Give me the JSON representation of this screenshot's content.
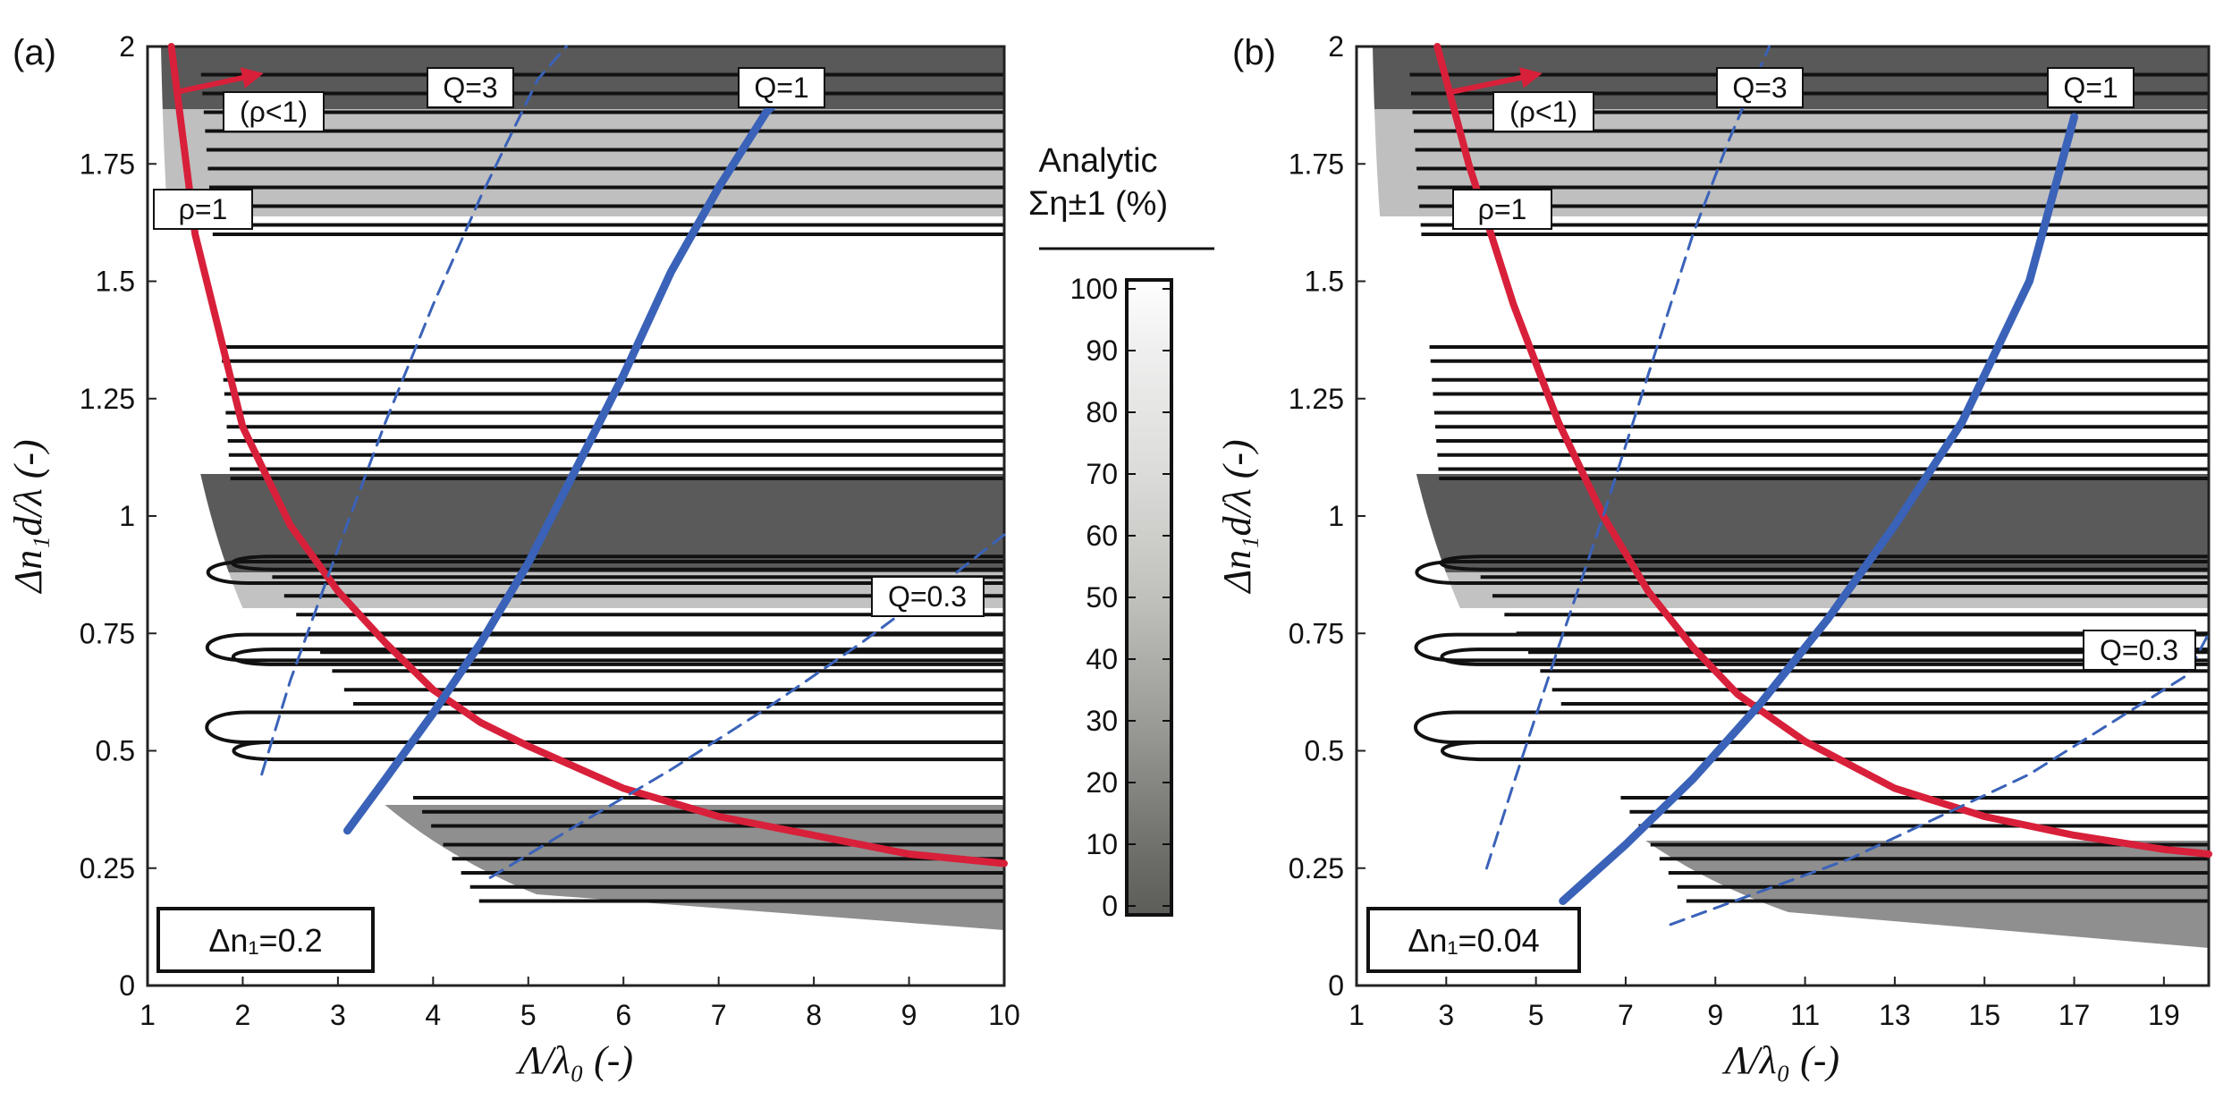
{
  "colors": {
    "rho_curve": "#d8203a",
    "q_curve": "#3a62b8",
    "contour": "#111111",
    "low": "#5a5a5a"
  },
  "colorbar": {
    "title_line1": "Analytic",
    "title_line2": "Ση±1 (%)",
    "ticks": [
      "100",
      "90",
      "80",
      "70",
      "60",
      "50",
      "40",
      "30",
      "20",
      "10",
      "0"
    ]
  },
  "chart_data": [
    {
      "type": "contour",
      "panel_label": "(a)",
      "xlabel": "Λ/λ₀  (-)",
      "ylabel": "Δn₁d/λ  (-)",
      "xlim": [
        1,
        10
      ],
      "ylim": [
        0,
        2
      ],
      "xticks": [
        "1",
        "2",
        "3",
        "4",
        "5",
        "6",
        "7",
        "8",
        "9",
        "10"
      ],
      "yticks": [
        "0",
        "0.25",
        "0.5",
        "0.75",
        "1",
        "1.25",
        "1.5",
        "1.75",
        "2"
      ],
      "legend": "Δn₁=0.2",
      "annotations": [
        "(ρ<1)",
        "ρ=1",
        "Q=3",
        "Q=1",
        "Q=0.3"
      ],
      "series": [
        {
          "name": "ρ=1",
          "style": "solid-red",
          "x": [
            1.25,
            1.5,
            2,
            2.5,
            3,
            3.5,
            4,
            4.5,
            5,
            6,
            7,
            8,
            9,
            10
          ],
          "y": [
            2.0,
            1.6,
            1.19,
            0.98,
            0.84,
            0.73,
            0.63,
            0.56,
            0.51,
            0.42,
            0.36,
            0.32,
            0.28,
            0.26
          ]
        },
        {
          "name": "Q=1",
          "style": "solid-blue",
          "x": [
            3.1,
            3.5,
            4,
            4.5,
            5,
            5.5,
            6,
            6.5,
            7,
            7.5,
            7.6
          ],
          "y": [
            0.33,
            0.44,
            0.58,
            0.73,
            0.9,
            1.1,
            1.3,
            1.52,
            1.7,
            1.86,
            1.88
          ]
        },
        {
          "name": "Q=3",
          "style": "dashed-blue",
          "x": [
            2.2,
            2.5,
            3,
            3.5,
            4,
            4.5,
            5.1,
            5.4
          ],
          "y": [
            0.45,
            0.65,
            0.93,
            1.2,
            1.45,
            1.68,
            1.93,
            2.0
          ]
        },
        {
          "name": "Q=0.3",
          "style": "dashed-blue",
          "x": [
            4.6,
            5.5,
            6.5,
            7.5,
            8.5,
            9.5,
            10
          ],
          "y": [
            0.23,
            0.34,
            0.46,
            0.59,
            0.73,
            0.88,
            0.96
          ]
        }
      ]
    },
    {
      "type": "contour",
      "panel_label": "(b)",
      "xlabel": "Λ/λ₀  (-)",
      "ylabel": "Δn₁d/λ  (-)",
      "xlim": [
        1,
        20
      ],
      "ylim": [
        0,
        2
      ],
      "xticks": [
        "1",
        "3",
        "5",
        "7",
        "9",
        "11",
        "13",
        "15",
        "17",
        "19"
      ],
      "yticks": [
        "0",
        "0.25",
        "0.5",
        "0.75",
        "1",
        "1.25",
        "1.5",
        "1.75",
        "2"
      ],
      "legend": "Δn₁=0.04",
      "annotations": [
        "(ρ<1)",
        "ρ=1",
        "Q=3",
        "Q=1",
        "Q=0.3"
      ],
      "series": [
        {
          "name": "ρ=1",
          "style": "solid-red",
          "x": [
            2.8,
            3.5,
            4.5,
            5.5,
            6.5,
            7.5,
            8.5,
            9.5,
            11,
            13,
            15,
            17,
            19,
            20
          ],
          "y": [
            2.0,
            1.75,
            1.45,
            1.2,
            1.0,
            0.84,
            0.72,
            0.62,
            0.52,
            0.42,
            0.36,
            0.32,
            0.29,
            0.28
          ]
        },
        {
          "name": "Q=1",
          "style": "solid-blue",
          "x": [
            5.6,
            7,
            8.5,
            10,
            11.5,
            13,
            14.5,
            16,
            17
          ],
          "y": [
            0.18,
            0.3,
            0.44,
            0.6,
            0.78,
            0.98,
            1.2,
            1.5,
            1.85
          ]
        },
        {
          "name": "Q=3",
          "style": "dashed-blue",
          "x": [
            3.9,
            4.5,
            5.5,
            6.5,
            7.5,
            8.5,
            9.3,
            10.2
          ],
          "y": [
            0.25,
            0.43,
            0.72,
            1.0,
            1.3,
            1.6,
            1.8,
            2.0
          ]
        },
        {
          "name": "Q=0.3",
          "style": "dashed-blue",
          "x": [
            8,
            10,
            12,
            14,
            16,
            18,
            19.5,
            20
          ],
          "y": [
            0.13,
            0.2,
            0.27,
            0.36,
            0.45,
            0.57,
            0.66,
            0.75
          ]
        }
      ]
    }
  ]
}
